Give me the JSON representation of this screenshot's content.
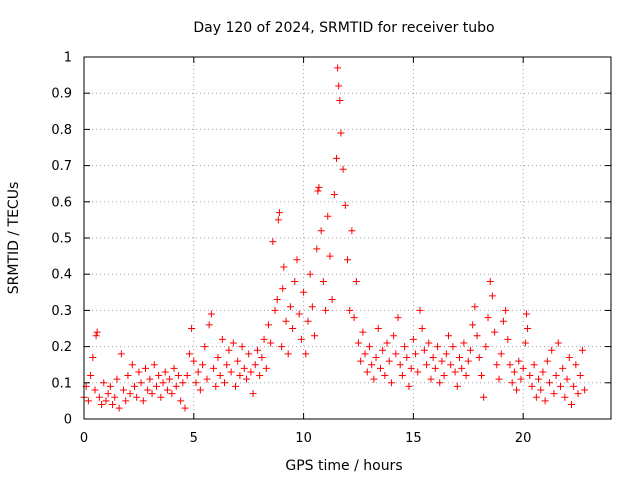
{
  "chart_data": {
    "type": "scatter",
    "title": "Day 120 of 2024, SRMTID for receiver tubo",
    "xlabel": "GPS time / hours",
    "ylabel": "SRMTID / TECUs",
    "xlim": [
      0,
      24
    ],
    "ylim": [
      0,
      1
    ],
    "x_ticks": [
      0,
      5,
      10,
      15,
      20
    ],
    "y_ticks": [
      0,
      0.1,
      0.2,
      0.3,
      0.4,
      0.5,
      0.6,
      0.7,
      0.8,
      0.9,
      1
    ],
    "x_tick_labels": [
      "0",
      "5",
      "10",
      "15",
      "20"
    ],
    "y_tick_labels": [
      "0",
      "0.1",
      "0.2",
      "0.3",
      "0.4",
      "0.5",
      "0.6",
      "0.7",
      "0.8",
      "0.9",
      "1"
    ],
    "grid": true,
    "marker": "plus",
    "color": "#ff0000",
    "series": [
      {
        "name": "SRMTID",
        "points": [
          [
            0.0,
            0.06
          ],
          [
            0.1,
            0.09
          ],
          [
            0.2,
            0.05
          ],
          [
            0.3,
            0.12
          ],
          [
            0.4,
            0.17
          ],
          [
            0.5,
            0.08
          ],
          [
            0.55,
            0.23
          ],
          [
            0.6,
            0.24
          ],
          [
            0.7,
            0.06
          ],
          [
            0.8,
            0.04
          ],
          [
            0.9,
            0.1
          ],
          [
            1.0,
            0.05
          ],
          [
            1.1,
            0.07
          ],
          [
            1.2,
            0.09
          ],
          [
            1.3,
            0.04
          ],
          [
            1.4,
            0.06
          ],
          [
            1.5,
            0.11
          ],
          [
            1.6,
            0.03
          ],
          [
            1.7,
            0.18
          ],
          [
            1.8,
            0.08
          ],
          [
            1.9,
            0.05
          ],
          [
            2.0,
            0.12
          ],
          [
            2.1,
            0.07
          ],
          [
            2.2,
            0.15
          ],
          [
            2.3,
            0.09
          ],
          [
            2.4,
            0.06
          ],
          [
            2.5,
            0.13
          ],
          [
            2.6,
            0.1
          ],
          [
            2.7,
            0.05
          ],
          [
            2.8,
            0.14
          ],
          [
            2.9,
            0.08
          ],
          [
            3.0,
            0.11
          ],
          [
            3.1,
            0.07
          ],
          [
            3.2,
            0.15
          ],
          [
            3.3,
            0.09
          ],
          [
            3.4,
            0.12
          ],
          [
            3.5,
            0.06
          ],
          [
            3.6,
            0.1
          ],
          [
            3.7,
            0.13
          ],
          [
            3.8,
            0.08
          ],
          [
            3.9,
            0.11
          ],
          [
            4.0,
            0.07
          ],
          [
            4.1,
            0.14
          ],
          [
            4.2,
            0.09
          ],
          [
            4.3,
            0.12
          ],
          [
            4.4,
            0.05
          ],
          [
            4.5,
            0.1
          ],
          [
            4.6,
            0.03
          ],
          [
            4.7,
            0.12
          ],
          [
            4.8,
            0.18
          ],
          [
            4.9,
            0.25
          ],
          [
            5.0,
            0.16
          ],
          [
            5.1,
            0.1
          ],
          [
            5.2,
            0.13
          ],
          [
            5.3,
            0.08
          ],
          [
            5.4,
            0.15
          ],
          [
            5.5,
            0.2
          ],
          [
            5.6,
            0.11
          ],
          [
            5.7,
            0.26
          ],
          [
            5.8,
            0.29
          ],
          [
            5.9,
            0.14
          ],
          [
            6.0,
            0.09
          ],
          [
            6.1,
            0.17
          ],
          [
            6.2,
            0.12
          ],
          [
            6.3,
            0.22
          ],
          [
            6.4,
            0.1
          ],
          [
            6.5,
            0.15
          ],
          [
            6.6,
            0.19
          ],
          [
            6.7,
            0.13
          ],
          [
            6.8,
            0.21
          ],
          [
            6.9,
            0.09
          ],
          [
            7.0,
            0.16
          ],
          [
            7.1,
            0.12
          ],
          [
            7.2,
            0.2
          ],
          [
            7.3,
            0.14
          ],
          [
            7.4,
            0.11
          ],
          [
            7.5,
            0.18
          ],
          [
            7.6,
            0.13
          ],
          [
            7.7,
            0.07
          ],
          [
            7.8,
            0.15
          ],
          [
            7.9,
            0.19
          ],
          [
            8.0,
            0.12
          ],
          [
            8.1,
            0.17
          ],
          [
            8.2,
            0.22
          ],
          [
            8.3,
            0.14
          ],
          [
            8.4,
            0.26
          ],
          [
            8.5,
            0.21
          ],
          [
            8.6,
            0.49
          ],
          [
            8.7,
            0.3
          ],
          [
            8.8,
            0.33
          ],
          [
            8.85,
            0.55
          ],
          [
            8.9,
            0.57
          ],
          [
            9.0,
            0.2
          ],
          [
            9.05,
            0.36
          ],
          [
            9.1,
            0.42
          ],
          [
            9.2,
            0.27
          ],
          [
            9.3,
            0.18
          ],
          [
            9.4,
            0.31
          ],
          [
            9.5,
            0.25
          ],
          [
            9.6,
            0.38
          ],
          [
            9.7,
            0.44
          ],
          [
            9.8,
            0.29
          ],
          [
            9.9,
            0.22
          ],
          [
            10.0,
            0.35
          ],
          [
            10.1,
            0.18
          ],
          [
            10.2,
            0.27
          ],
          [
            10.3,
            0.4
          ],
          [
            10.4,
            0.31
          ],
          [
            10.5,
            0.23
          ],
          [
            10.6,
            0.47
          ],
          [
            10.65,
            0.63
          ],
          [
            10.7,
            0.64
          ],
          [
            10.8,
            0.52
          ],
          [
            10.9,
            0.38
          ],
          [
            11.0,
            0.3
          ],
          [
            11.1,
            0.56
          ],
          [
            11.2,
            0.45
          ],
          [
            11.3,
            0.33
          ],
          [
            11.4,
            0.62
          ],
          [
            11.5,
            0.72
          ],
          [
            11.55,
            0.97
          ],
          [
            11.6,
            0.92
          ],
          [
            11.65,
            0.88
          ],
          [
            11.7,
            0.79
          ],
          [
            11.8,
            0.69
          ],
          [
            11.9,
            0.59
          ],
          [
            12.0,
            0.44
          ],
          [
            12.1,
            0.3
          ],
          [
            12.2,
            0.52
          ],
          [
            12.3,
            0.28
          ],
          [
            12.4,
            0.38
          ],
          [
            12.5,
            0.21
          ],
          [
            12.6,
            0.16
          ],
          [
            12.7,
            0.24
          ],
          [
            12.8,
            0.18
          ],
          [
            12.9,
            0.13
          ],
          [
            13.0,
            0.2
          ],
          [
            13.1,
            0.15
          ],
          [
            13.2,
            0.11
          ],
          [
            13.3,
            0.17
          ],
          [
            13.4,
            0.25
          ],
          [
            13.5,
            0.14
          ],
          [
            13.6,
            0.19
          ],
          [
            13.7,
            0.12
          ],
          [
            13.8,
            0.21
          ],
          [
            13.9,
            0.16
          ],
          [
            14.0,
            0.1
          ],
          [
            14.1,
            0.23
          ],
          [
            14.2,
            0.18
          ],
          [
            14.3,
            0.28
          ],
          [
            14.4,
            0.15
          ],
          [
            14.5,
            0.12
          ],
          [
            14.6,
            0.2
          ],
          [
            14.7,
            0.17
          ],
          [
            14.8,
            0.09
          ],
          [
            14.9,
            0.14
          ],
          [
            15.0,
            0.22
          ],
          [
            15.1,
            0.18
          ],
          [
            15.2,
            0.13
          ],
          [
            15.3,
            0.3
          ],
          [
            15.4,
            0.25
          ],
          [
            15.5,
            0.19
          ],
          [
            15.6,
            0.15
          ],
          [
            15.7,
            0.21
          ],
          [
            15.8,
            0.11
          ],
          [
            15.9,
            0.17
          ],
          [
            16.0,
            0.14
          ],
          [
            16.1,
            0.2
          ],
          [
            16.2,
            0.1
          ],
          [
            16.3,
            0.16
          ],
          [
            16.4,
            0.12
          ],
          [
            16.5,
            0.18
          ],
          [
            16.6,
            0.23
          ],
          [
            16.7,
            0.15
          ],
          [
            16.8,
            0.2
          ],
          [
            16.9,
            0.13
          ],
          [
            17.0,
            0.09
          ],
          [
            17.1,
            0.17
          ],
          [
            17.2,
            0.14
          ],
          [
            17.3,
            0.21
          ],
          [
            17.4,
            0.12
          ],
          [
            17.5,
            0.16
          ],
          [
            17.6,
            0.19
          ],
          [
            17.7,
            0.26
          ],
          [
            17.8,
            0.31
          ],
          [
            17.9,
            0.23
          ],
          [
            18.0,
            0.17
          ],
          [
            18.1,
            0.12
          ],
          [
            18.2,
            0.06
          ],
          [
            18.3,
            0.2
          ],
          [
            18.4,
            0.28
          ],
          [
            18.5,
            0.38
          ],
          [
            18.6,
            0.34
          ],
          [
            18.7,
            0.24
          ],
          [
            18.8,
            0.15
          ],
          [
            18.9,
            0.11
          ],
          [
            19.0,
            0.18
          ],
          [
            19.1,
            0.27
          ],
          [
            19.2,
            0.3
          ],
          [
            19.3,
            0.22
          ],
          [
            19.4,
            0.15
          ],
          [
            19.5,
            0.1
          ],
          [
            19.6,
            0.13
          ],
          [
            19.7,
            0.08
          ],
          [
            19.8,
            0.16
          ],
          [
            19.9,
            0.11
          ],
          [
            20.0,
            0.14
          ],
          [
            20.1,
            0.21
          ],
          [
            20.15,
            0.29
          ],
          [
            20.2,
            0.25
          ],
          [
            20.3,
            0.12
          ],
          [
            20.4,
            0.09
          ],
          [
            20.5,
            0.15
          ],
          [
            20.6,
            0.06
          ],
          [
            20.7,
            0.11
          ],
          [
            20.8,
            0.08
          ],
          [
            20.9,
            0.13
          ],
          [
            21.0,
            0.05
          ],
          [
            21.1,
            0.16
          ],
          [
            21.2,
            0.1
          ],
          [
            21.3,
            0.19
          ],
          [
            21.4,
            0.07
          ],
          [
            21.5,
            0.12
          ],
          [
            21.6,
            0.21
          ],
          [
            21.7,
            0.09
          ],
          [
            21.8,
            0.14
          ],
          [
            21.9,
            0.06
          ],
          [
            22.0,
            0.11
          ],
          [
            22.1,
            0.17
          ],
          [
            22.2,
            0.04
          ],
          [
            22.3,
            0.09
          ],
          [
            22.4,
            0.15
          ],
          [
            22.5,
            0.07
          ],
          [
            22.6,
            0.12
          ],
          [
            22.7,
            0.19
          ],
          [
            22.8,
            0.08
          ]
        ]
      }
    ]
  }
}
